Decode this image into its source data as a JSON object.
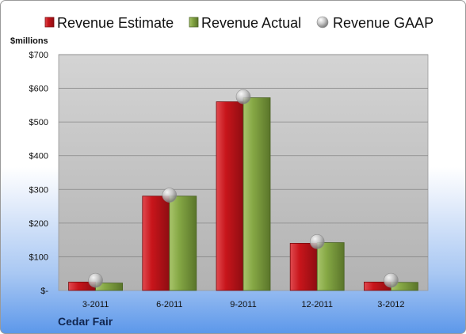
{
  "chart_data": {
    "type": "bar",
    "categories": [
      "3-2011",
      "6-2011",
      "9-2011",
      "12-2011",
      "3-2012"
    ],
    "series": [
      {
        "name": "Revenue Estimate",
        "values": [
          25,
          280,
          560,
          140,
          25
        ],
        "color": "#c8151b"
      },
      {
        "name": "Revenue Actual",
        "values": [
          22,
          280,
          572,
          142,
          24
        ],
        "color": "#86a845"
      },
      {
        "name": "Revenue GAAP",
        "values": [
          30,
          283,
          575,
          145,
          30
        ],
        "color": "#b8b8b8",
        "marker": "sphere"
      }
    ],
    "ylabel": "$millions",
    "ylim": [
      0,
      700
    ],
    "yticks": [
      0,
      100,
      200,
      300,
      400,
      500,
      600,
      700
    ],
    "ytick_labels": [
      "$-",
      "$100",
      "$200",
      "$300",
      "$400",
      "$500",
      "$600",
      "$700"
    ],
    "legend_position": "top",
    "grid": true
  },
  "company": "Cedar Fair"
}
